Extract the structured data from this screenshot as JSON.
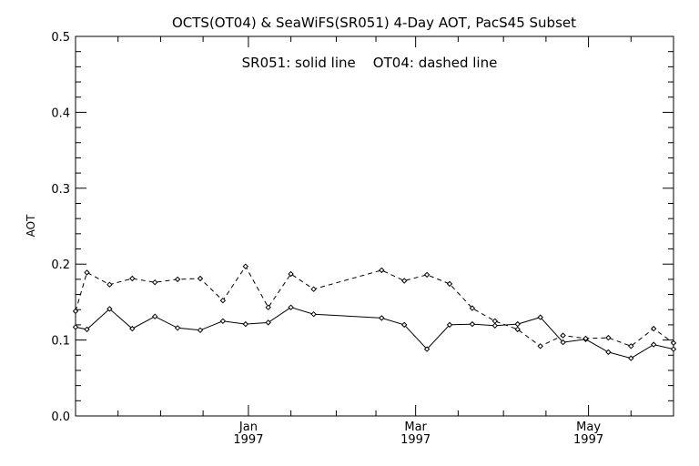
{
  "chart_data": {
    "type": "line",
    "title": "OCTS(OT04) & SeaWiFS(SR051) 4-Day AOT, PacS45 Subset",
    "annotation": "SR051: solid line    OT04: dashed line",
    "xlabel": "",
    "ylabel": "AOT",
    "ylim": [
      0.0,
      0.5
    ],
    "yticks": [
      "0.0",
      "0.1",
      "0.2",
      "0.3",
      "0.4",
      "0.5"
    ],
    "x_domain": [
      "1996-11-01",
      "1997-05-31"
    ],
    "xticks": [
      {
        "date": "1997-01-01",
        "label": "Jan",
        "year": "1997"
      },
      {
        "date": "1997-03-01",
        "label": "Mar",
        "year": "1997"
      },
      {
        "date": "1997-05-01",
        "label": "May",
        "year": "1997"
      }
    ],
    "minor_tick_dates": [
      "1996-11-16",
      "1996-12-01",
      "1996-12-16",
      "1997-01-16",
      "1997-02-01",
      "1997-02-15",
      "1997-03-16",
      "1997-04-01",
      "1997-04-16",
      "1997-05-16"
    ],
    "grid": false,
    "legend": "none",
    "series": [
      {
        "name": "SR051",
        "style": "solid",
        "color": "#000000",
        "points": [
          {
            "x": "1996-11-01",
            "y": 0.117
          },
          {
            "x": "1996-11-05",
            "y": 0.114
          },
          {
            "x": "1996-11-13",
            "y": 0.141
          },
          {
            "x": "1996-11-21",
            "y": 0.115
          },
          {
            "x": "1996-11-29",
            "y": 0.131
          },
          {
            "x": "1996-12-07",
            "y": 0.116
          },
          {
            "x": "1996-12-15",
            "y": 0.113
          },
          {
            "x": "1996-12-23",
            "y": 0.125
          },
          {
            "x": "1996-12-31",
            "y": 0.121
          },
          {
            "x": "1997-01-08",
            "y": 0.123
          },
          {
            "x": "1997-01-16",
            "y": 0.143
          },
          {
            "x": "1997-01-24",
            "y": 0.134
          },
          {
            "x": "1997-02-17",
            "y": 0.129
          },
          {
            "x": "1997-02-25",
            "y": 0.12
          },
          {
            "x": "1997-03-05",
            "y": 0.088
          },
          {
            "x": "1997-03-13",
            "y": 0.12
          },
          {
            "x": "1997-03-21",
            "y": 0.121
          },
          {
            "x": "1997-03-29",
            "y": 0.119
          },
          {
            "x": "1997-04-06",
            "y": 0.121
          },
          {
            "x": "1997-04-14",
            "y": 0.13
          },
          {
            "x": "1997-04-22",
            "y": 0.097
          },
          {
            "x": "1997-04-30",
            "y": 0.101
          },
          {
            "x": "1997-05-08",
            "y": 0.084
          },
          {
            "x": "1997-05-16",
            "y": 0.076
          },
          {
            "x": "1997-05-24",
            "y": 0.094
          },
          {
            "x": "1997-05-31",
            "y": 0.088
          }
        ]
      },
      {
        "name": "OT04",
        "style": "dashed",
        "color": "#000000",
        "points": [
          {
            "x": "1996-11-01",
            "y": 0.138
          },
          {
            "x": "1996-11-05",
            "y": 0.189
          },
          {
            "x": "1996-11-13",
            "y": 0.173
          },
          {
            "x": "1996-11-21",
            "y": 0.181
          },
          {
            "x": "1996-11-29",
            "y": 0.176
          },
          {
            "x": "1996-12-07",
            "y": 0.18
          },
          {
            "x": "1996-12-15",
            "y": 0.181
          },
          {
            "x": "1996-12-23",
            "y": 0.152
          },
          {
            "x": "1996-12-31",
            "y": 0.197
          },
          {
            "x": "1997-01-08",
            "y": 0.143
          },
          {
            "x": "1997-01-16",
            "y": 0.187
          },
          {
            "x": "1997-01-24",
            "y": 0.167
          },
          {
            "x": "1997-02-17",
            "y": 0.192
          },
          {
            "x": "1997-02-25",
            "y": 0.178
          },
          {
            "x": "1997-03-05",
            "y": 0.186
          },
          {
            "x": "1997-03-13",
            "y": 0.174
          },
          {
            "x": "1997-03-21",
            "y": 0.142
          },
          {
            "x": "1997-03-29",
            "y": 0.125
          },
          {
            "x": "1997-04-06",
            "y": 0.114
          },
          {
            "x": "1997-04-14",
            "y": 0.092
          },
          {
            "x": "1997-04-22",
            "y": 0.106
          },
          {
            "x": "1997-04-30",
            "y": 0.102
          },
          {
            "x": "1997-05-08",
            "y": 0.103
          },
          {
            "x": "1997-05-16",
            "y": 0.092
          },
          {
            "x": "1997-05-24",
            "y": 0.115
          },
          {
            "x": "1997-05-31",
            "y": 0.096
          }
        ]
      }
    ]
  }
}
